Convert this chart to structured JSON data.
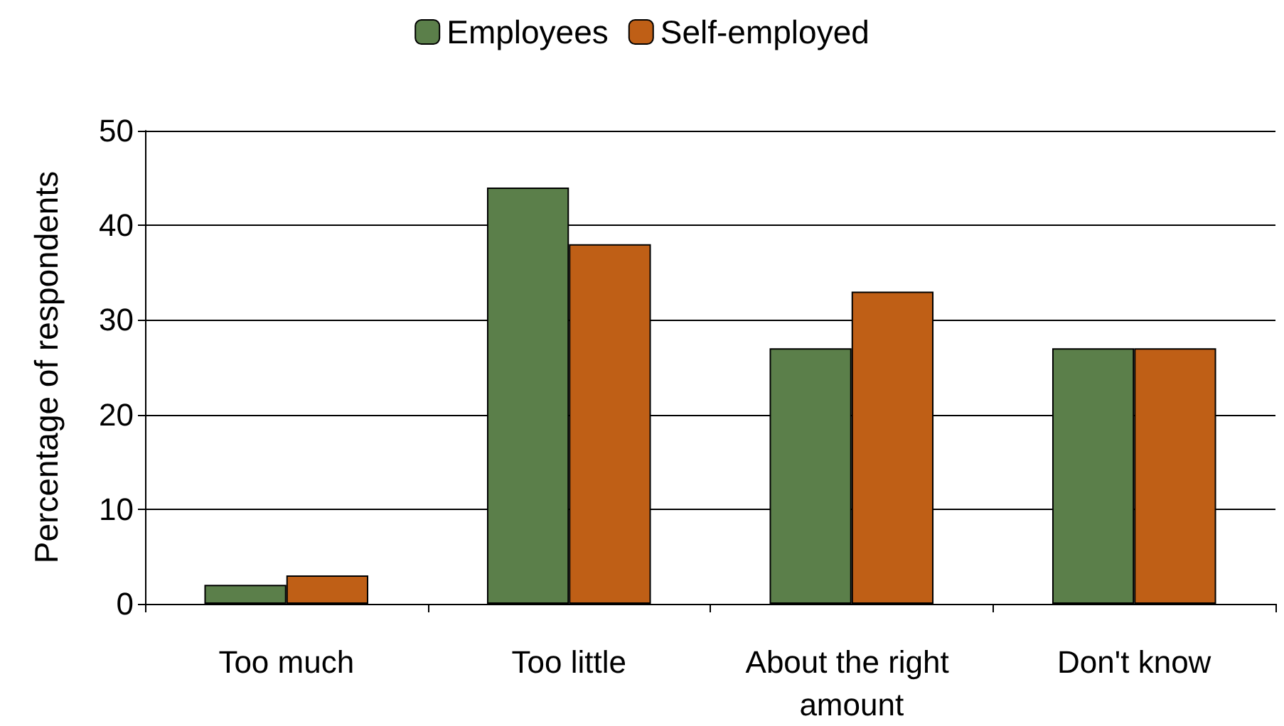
{
  "chart_data": {
    "type": "bar",
    "ylabel": "Percentage of respondents",
    "categories": [
      "Too much",
      "Too little",
      "About the right amount",
      "Don't know"
    ],
    "series": [
      {
        "name": "Employees",
        "color": "#5b7f4a",
        "values": [
          2,
          44,
          27,
          27
        ]
      },
      {
        "name": "Self-employed",
        "color": "#bf5f16",
        "values": [
          3,
          38,
          33,
          27
        ]
      }
    ],
    "ylim": [
      0,
      50
    ],
    "yticks": [
      0,
      10,
      20,
      30,
      40,
      50
    ],
    "grid": "y",
    "legend": "top"
  }
}
